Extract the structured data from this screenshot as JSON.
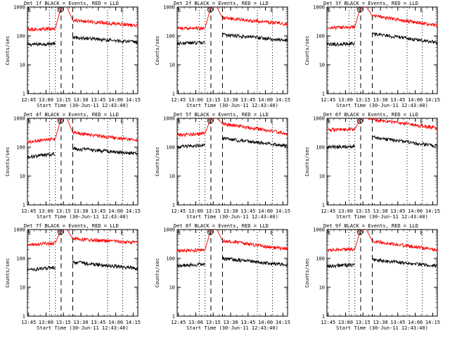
{
  "chart_data": [
    {
      "type": "line",
      "title": "Det 1f BLACK = Events, RED = LLD",
      "xlabel": "Start Time (30-Jun-11 12:43:40)",
      "ylabel": "Counts/sec",
      "x_ticks": [
        "12:45",
        "13:00",
        "13:15",
        "13:30",
        "13:45",
        "14:00",
        "14:15"
      ],
      "y_ticks": [
        "1",
        "10",
        "100",
        "1000"
      ],
      "x_range_min": [
        0,
        95
      ],
      "y_log_range": [
        1,
        1000
      ],
      "annotations": [
        "E",
        "S",
        "E"
      ],
      "series": [
        {
          "name": "Events",
          "color": "#000000",
          "segments": [
            {
              "x": [
                0,
                24
              ],
              "y": [
                50,
                55
              ]
            },
            {
              "x": [
                39,
                95
              ],
              "y": [
                90,
                60
              ]
            }
          ]
        },
        {
          "name": "LLD",
          "color": "#ff0000",
          "segments": [
            {
              "x": [
                0,
                24
              ],
              "y": [
                170,
                180
              ]
            },
            {
              "x": [
                24,
                29
              ],
              "y": [
                180,
                1000
              ]
            },
            {
              "x": [
                34,
                39
              ],
              "y": [
                1000,
                350
              ]
            },
            {
              "x": [
                39,
                95
              ],
              "y": [
                350,
                230
              ]
            }
          ]
        }
      ]
    },
    {
      "type": "line",
      "title": "Det 2f BLACK = Events, RED = LLD",
      "xlabel": "Start Time (30-Jun-11 12:43:40)",
      "ylabel": "Counts/sec",
      "x_ticks": [
        "12:45",
        "13:00",
        "13:15",
        "13:30",
        "13:45",
        "14:00",
        "14:15"
      ],
      "y_ticks": [
        "1",
        "10",
        "100",
        "1000"
      ],
      "x_range_min": [
        0,
        95
      ],
      "y_log_range": [
        1,
        1000
      ],
      "annotations": [
        "E",
        "S",
        "E"
      ],
      "series": [
        {
          "name": "Events",
          "color": "#000000",
          "segments": [
            {
              "x": [
                0,
                24
              ],
              "y": [
                55,
                60
              ]
            },
            {
              "x": [
                39,
                95
              ],
              "y": [
                110,
                70
              ]
            }
          ]
        },
        {
          "name": "LLD",
          "color": "#ff0000",
          "segments": [
            {
              "x": [
                0,
                24
              ],
              "y": [
                180,
                190
              ]
            },
            {
              "x": [
                24,
                29
              ],
              "y": [
                190,
                1000
              ]
            },
            {
              "x": [
                34,
                39
              ],
              "y": [
                1000,
                420
              ]
            },
            {
              "x": [
                39,
                95
              ],
              "y": [
                420,
                260
              ]
            }
          ]
        }
      ]
    },
    {
      "type": "line",
      "title": "Det 3f BLACK = Events, RED = LLD",
      "xlabel": "Start Time (30-Jun-11 12:43:40)",
      "ylabel": "Counts/sec",
      "x_ticks": [
        "12:45",
        "13:00",
        "13:15",
        "13:30",
        "13:45",
        "14:00",
        "14:15"
      ],
      "y_ticks": [
        "1",
        "10",
        "100",
        "1000"
      ],
      "x_range_min": [
        0,
        95
      ],
      "y_log_range": [
        1,
        1000
      ],
      "annotations": [
        "E",
        "S",
        "E"
      ],
      "series": [
        {
          "name": "Events",
          "color": "#000000",
          "segments": [
            {
              "x": [
                0,
                24
              ],
              "y": [
                50,
                55
              ]
            },
            {
              "x": [
                39,
                95
              ],
              "y": [
                120,
                60
              ]
            }
          ]
        },
        {
          "name": "LLD",
          "color": "#ff0000",
          "segments": [
            {
              "x": [
                0,
                24
              ],
              "y": [
                180,
                210
              ]
            },
            {
              "x": [
                24,
                29
              ],
              "y": [
                210,
                1000
              ]
            },
            {
              "x": [
                34,
                39
              ],
              "y": [
                1000,
                500
              ]
            },
            {
              "x": [
                39,
                95
              ],
              "y": [
                500,
                230
              ]
            }
          ]
        }
      ]
    },
    {
      "type": "line",
      "title": "Det 4f BLACK = Events, RED = LLD",
      "xlabel": "Start Time (30-Jun-11 12:43:40)",
      "ylabel": "Counts/sec",
      "x_ticks": [
        "12:45",
        "13:00",
        "13:15",
        "13:30",
        "13:45",
        "14:00",
        "14:15"
      ],
      "y_ticks": [
        "1",
        "10",
        "100",
        "1000"
      ],
      "x_range_min": [
        0,
        95
      ],
      "y_log_range": [
        1,
        1000
      ],
      "annotations": [
        "E",
        "S",
        "E"
      ],
      "series": [
        {
          "name": "Events",
          "color": "#000000",
          "segments": [
            {
              "x": [
                0,
                24
              ],
              "y": [
                45,
                60
              ]
            },
            {
              "x": [
                39,
                95
              ],
              "y": [
                90,
                60
              ]
            }
          ]
        },
        {
          "name": "LLD",
          "color": "#ff0000",
          "segments": [
            {
              "x": [
                0,
                24
              ],
              "y": [
                150,
                200
              ]
            },
            {
              "x": [
                24,
                29
              ],
              "y": [
                200,
                1000
              ]
            },
            {
              "x": [
                34,
                39
              ],
              "y": [
                1000,
                320
              ]
            },
            {
              "x": [
                39,
                95
              ],
              "y": [
                320,
                170
              ]
            }
          ]
        }
      ]
    },
    {
      "type": "line",
      "title": "Det 5f BLACK = Events, RED = LLD",
      "xlabel": "Start Time (30-Jun-11 12:43:40)",
      "ylabel": "Counts/sec",
      "x_ticks": [
        "12:45",
        "13:00",
        "13:15",
        "13:30",
        "13:45",
        "14:00",
        "14:15"
      ],
      "y_ticks": [
        "1",
        "10",
        "100",
        "1000"
      ],
      "x_range_min": [
        0,
        95
      ],
      "y_log_range": [
        1,
        1000
      ],
      "annotations": [
        "E",
        "S",
        "E"
      ],
      "series": [
        {
          "name": "Events",
          "color": "#000000",
          "segments": [
            {
              "x": [
                0,
                24
              ],
              "y": [
                100,
                120
              ]
            },
            {
              "x": [
                39,
                95
              ],
              "y": [
                200,
                110
              ]
            }
          ]
        },
        {
          "name": "LLD",
          "color": "#ff0000",
          "segments": [
            {
              "x": [
                0,
                24
              ],
              "y": [
                260,
                300
              ]
            },
            {
              "x": [
                24,
                29
              ],
              "y": [
                300,
                1000
              ]
            },
            {
              "x": [
                34,
                39
              ],
              "y": [
                1000,
                650
              ]
            },
            {
              "x": [
                39,
                95
              ],
              "y": [
                650,
                300
              ]
            }
          ]
        }
      ]
    },
    {
      "type": "line",
      "title": "Det 6f BLACK = Events, RED = LLD",
      "xlabel": "Start Time (30-Jun-11 12:43:40)",
      "ylabel": "Counts/sec",
      "x_ticks": [
        "12:45",
        "13:00",
        "13:15",
        "13:30",
        "13:45",
        "14:00",
        "14:15"
      ],
      "y_ticks": [
        "1",
        "10",
        "100",
        "1000"
      ],
      "x_range_min": [
        0,
        95
      ],
      "y_log_range": [
        1,
        1000
      ],
      "annotations": [
        "E",
        "S",
        "E"
      ],
      "series": [
        {
          "name": "Events",
          "color": "#000000",
          "segments": [
            {
              "x": [
                0,
                24
              ],
              "y": [
                100,
                110
              ]
            },
            {
              "x": [
                39,
                95
              ],
              "y": [
                220,
                110
              ]
            }
          ]
        },
        {
          "name": "LLD",
          "color": "#ff0000",
          "segments": [
            {
              "x": [
                0,
                24
              ],
              "y": [
                400,
                420
              ]
            },
            {
              "x": [
                24,
                29
              ],
              "y": [
                420,
                1000
              ]
            },
            {
              "x": [
                34,
                39
              ],
              "y": [
                1000,
                900
              ]
            },
            {
              "x": [
                39,
                95
              ],
              "y": [
                900,
                470
              ]
            }
          ]
        }
      ]
    },
    {
      "type": "line",
      "title": "Det 7f BLACK = Events, RED = LLD",
      "xlabel": "Start Time (30-Jun-11 12:43:40)",
      "ylabel": "Counts/sec",
      "x_ticks": [
        "12:45",
        "13:00",
        "13:15",
        "13:30",
        "13:45",
        "14:00",
        "14:15"
      ],
      "y_ticks": [
        "1",
        "10",
        "100",
        "1000"
      ],
      "x_range_min": [
        0,
        95
      ],
      "y_log_range": [
        1,
        1000
      ],
      "annotations": [
        "E",
        "S",
        "E"
      ],
      "series": [
        {
          "name": "Events",
          "color": "#000000",
          "segments": [
            {
              "x": [
                0,
                24
              ],
              "y": [
                40,
                50
              ]
            },
            {
              "x": [
                39,
                95
              ],
              "y": [
                75,
                45
              ]
            }
          ]
        },
        {
          "name": "LLD",
          "color": "#ff0000",
          "segments": [
            {
              "x": [
                0,
                24
              ],
              "y": [
                300,
                340
              ]
            },
            {
              "x": [
                24,
                29
              ],
              "y": [
                340,
                1000
              ]
            },
            {
              "x": [
                34,
                39
              ],
              "y": [
                1000,
                480
              ]
            },
            {
              "x": [
                39,
                95
              ],
              "y": [
                480,
                350
              ]
            }
          ]
        }
      ]
    },
    {
      "type": "line",
      "title": "Det 8f BLACK = Events, RED = LLD",
      "xlabel": "Start Time (30-Jun-11 12:43:40)",
      "ylabel": "Counts/sec",
      "x_ticks": [
        "12:45",
        "13:00",
        "13:15",
        "13:30",
        "13:45",
        "14:00",
        "14:15"
      ],
      "y_ticks": [
        "1",
        "10",
        "100",
        "1000"
      ],
      "x_range_min": [
        0,
        95
      ],
      "y_log_range": [
        1,
        1000
      ],
      "annotations": [
        "E",
        "S",
        "E"
      ],
      "series": [
        {
          "name": "Events",
          "color": "#000000",
          "segments": [
            {
              "x": [
                0,
                24
              ],
              "y": [
                55,
                65
              ]
            },
            {
              "x": [
                39,
                95
              ],
              "y": [
                100,
                60
              ]
            }
          ]
        },
        {
          "name": "LLD",
          "color": "#ff0000",
          "segments": [
            {
              "x": [
                0,
                24
              ],
              "y": [
                180,
                200
              ]
            },
            {
              "x": [
                24,
                29
              ],
              "y": [
                200,
                1000
              ]
            },
            {
              "x": [
                34,
                39
              ],
              "y": [
                1000,
                420
              ]
            },
            {
              "x": [
                39,
                95
              ],
              "y": [
                420,
                210
              ]
            }
          ]
        }
      ]
    },
    {
      "type": "line",
      "title": "Det 9f BLACK = Events, RED = LLD",
      "xlabel": "Start Time (30-Jun-11 12:43:40)",
      "ylabel": "Counts/sec",
      "x_ticks": [
        "12:45",
        "13:00",
        "13:15",
        "13:30",
        "13:45",
        "14:00",
        "14:15"
      ],
      "y_ticks": [
        "1",
        "10",
        "100",
        "1000"
      ],
      "x_range_min": [
        0,
        95
      ],
      "y_log_range": [
        1,
        1000
      ],
      "annotations": [
        "E",
        "S",
        "E"
      ],
      "series": [
        {
          "name": "Events",
          "color": "#000000",
          "segments": [
            {
              "x": [
                0,
                24
              ],
              "y": [
                55,
                60
              ]
            },
            {
              "x": [
                39,
                95
              ],
              "y": [
                90,
                55
              ]
            }
          ]
        },
        {
          "name": "LLD",
          "color": "#ff0000",
          "segments": [
            {
              "x": [
                0,
                24
              ],
              "y": [
                190,
                210
              ]
            },
            {
              "x": [
                24,
                29
              ],
              "y": [
                210,
                1000
              ]
            },
            {
              "x": [
                34,
                39
              ],
              "y": [
                1000,
                400
              ]
            },
            {
              "x": [
                39,
                95
              ],
              "y": [
                400,
                200
              ]
            }
          ]
        }
      ]
    }
  ],
  "markers": {
    "dotted_minutes": [
      19,
      24,
      69,
      82
    ],
    "dashed_minutes": [
      29,
      39
    ]
  }
}
